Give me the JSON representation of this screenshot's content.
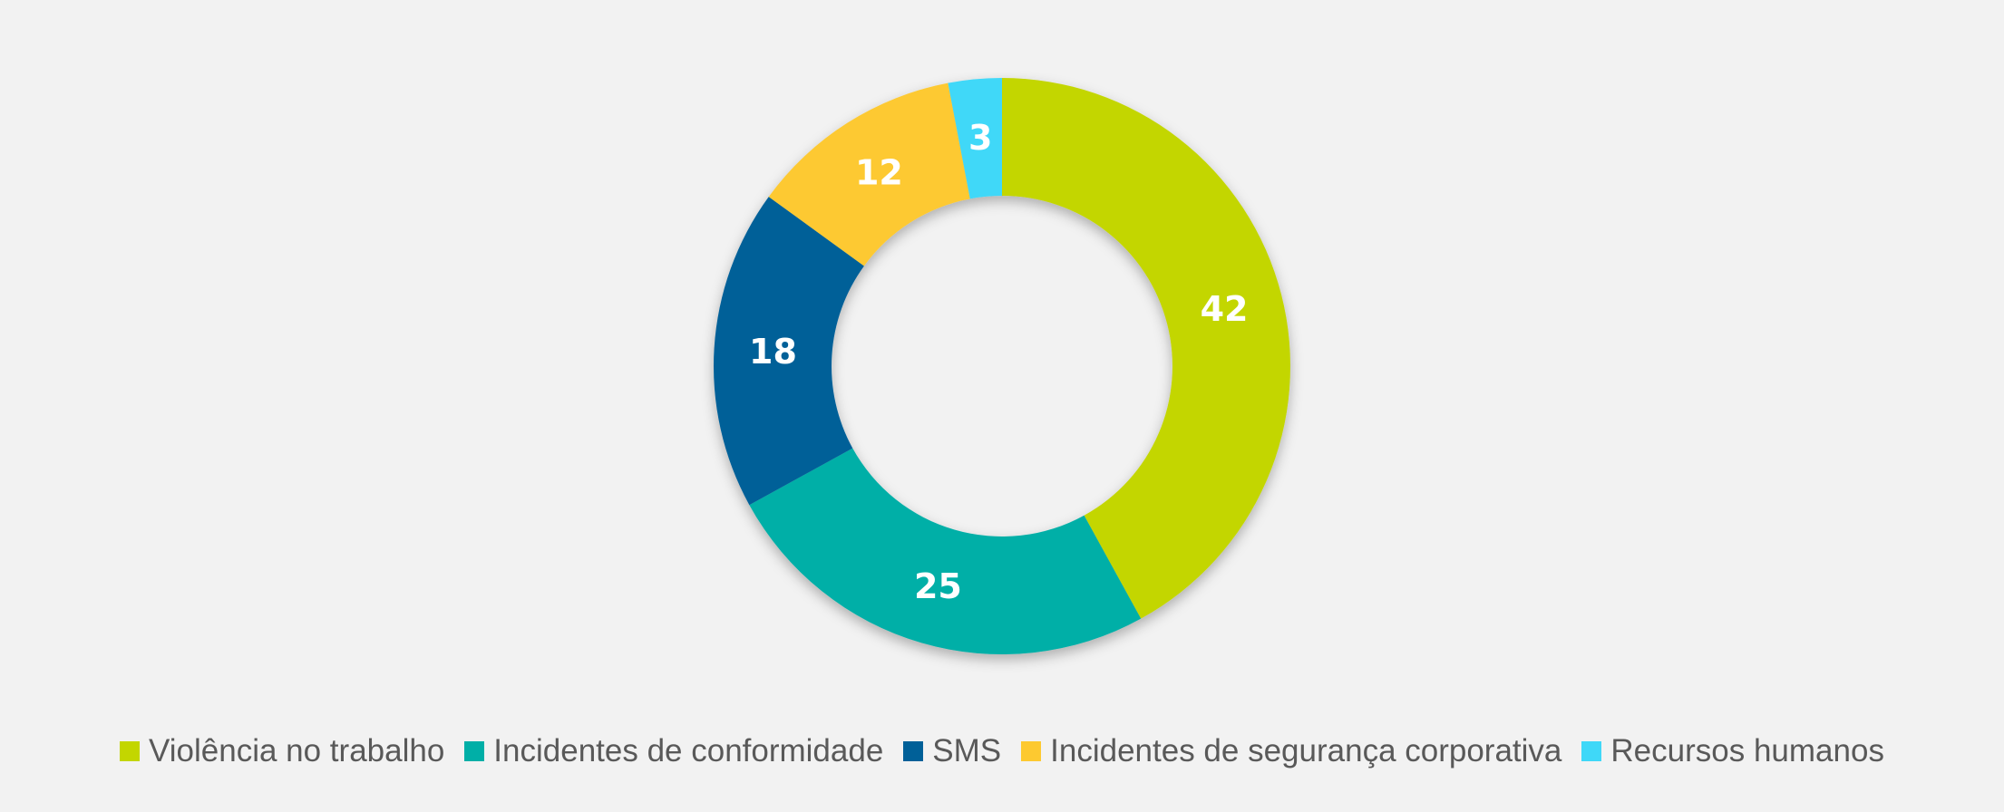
{
  "chart_data": {
    "type": "pie",
    "variant": "donut",
    "title": "",
    "legend_position": "bottom",
    "categories": [
      "Violência no trabalho",
      "Incidentes de conformidade",
      "SMS",
      "Incidentes de segurança corporativa",
      "Recursos humanos"
    ],
    "values": [
      42,
      25,
      18,
      12,
      3
    ],
    "colors": [
      "#c3d600",
      "#00afa7",
      "#006098",
      "#fdc930",
      "#3fd8f8"
    ],
    "data_labels": [
      "42",
      "25",
      "18",
      "12",
      "3"
    ]
  }
}
